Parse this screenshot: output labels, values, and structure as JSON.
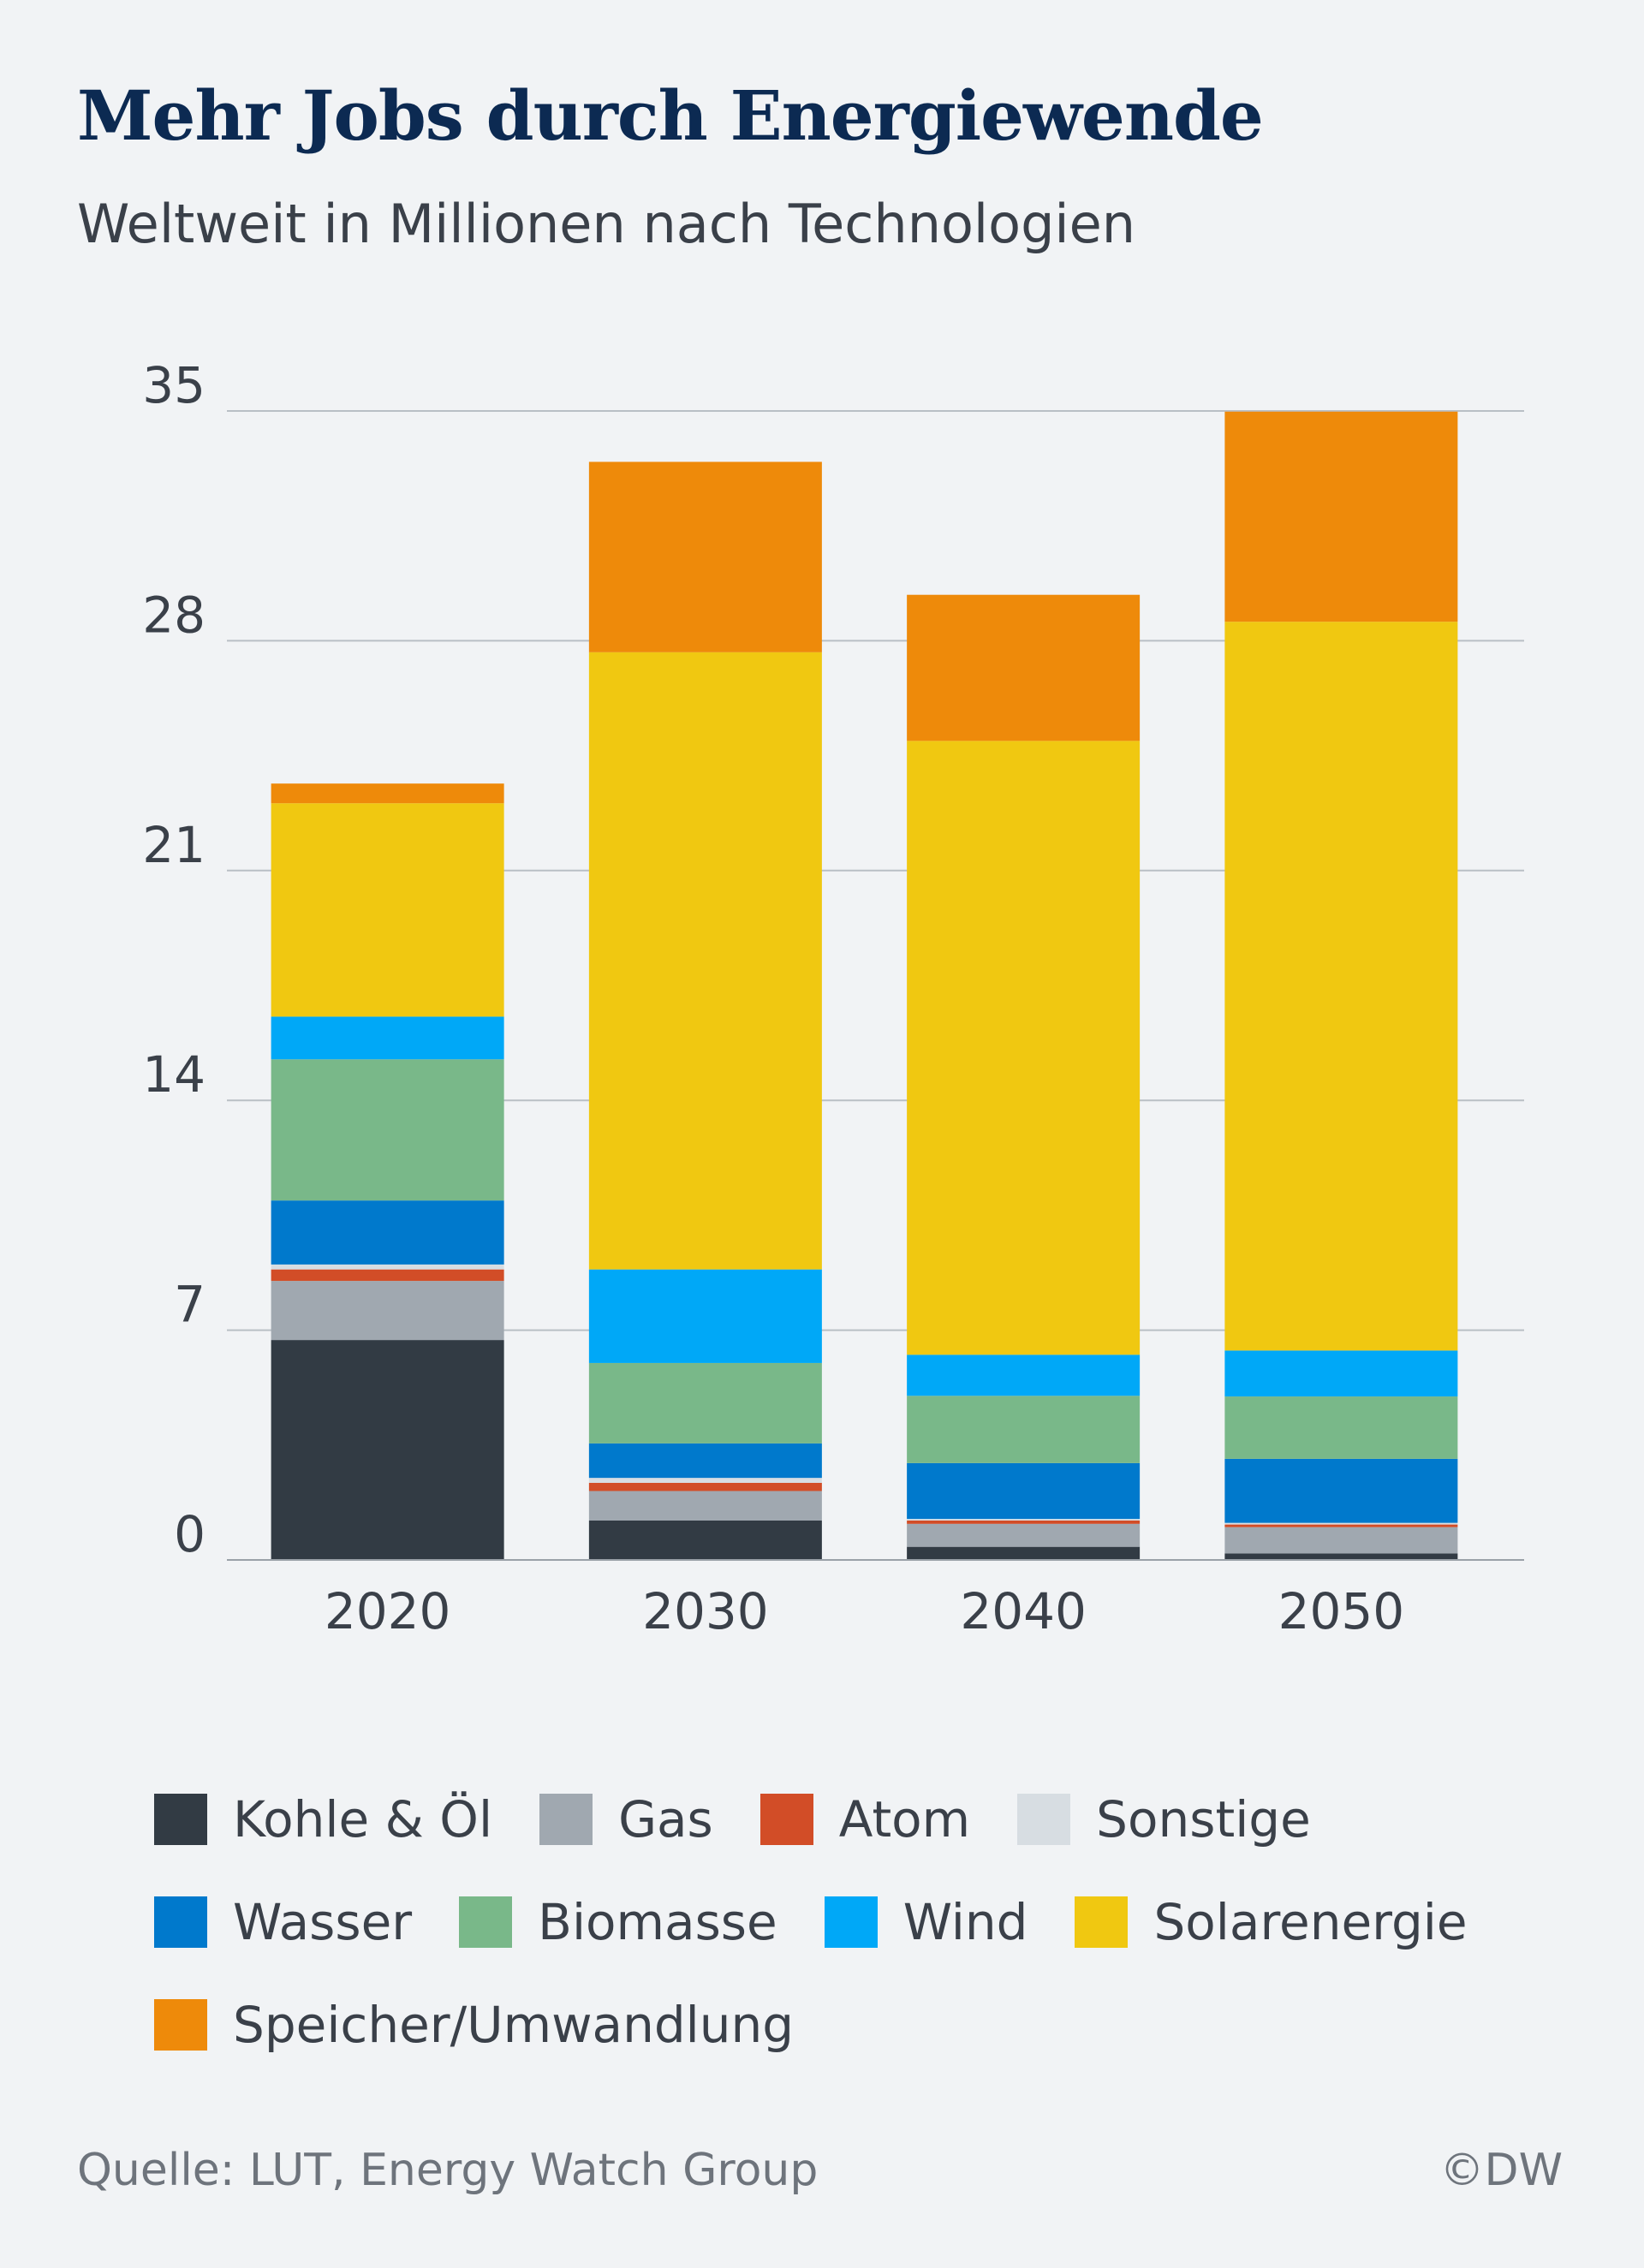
{
  "title": "Mehr Jobs durch Energiewende",
  "subtitle": "Weltweit in Millionen nach Technologien",
  "source": "Quelle: LUT, Energy Watch Group",
  "copyright": "©DW",
  "colors": {
    "Kohle & Öl": "#323b44",
    "Gas": "#a0a8b0",
    "Atom": "#d24d27",
    "Sonstige": "#d7dde2",
    "Wasser": "#0079cc",
    "Biomasse": "#79b889",
    "Wind": "#00a8f7",
    "Solarenergie": "#f0c811",
    "Speicher/Umwandlung": "#ee8a0a",
    "grid": "#b9bfc5",
    "text": "#3a4049",
    "title": "#0c2a52"
  },
  "legend_rows": [
    [
      "Kohle & Öl",
      "Gas",
      "Atom",
      "Sonstige"
    ],
    [
      "Wasser",
      "Biomasse",
      "Wind",
      "Solarenergie"
    ],
    [
      "Speicher/Umwandlung"
    ]
  ],
  "chart_data": {
    "type": "bar",
    "stacked": true,
    "title": "Mehr Jobs durch Energiewende",
    "subtitle": "Weltweit in Millionen nach Technologien",
    "xlabel": "",
    "ylabel": "",
    "ylim": [
      0,
      35
    ],
    "yticks": [
      0,
      7,
      14,
      21,
      28,
      35
    ],
    "grid": true,
    "legend_position": "bottom",
    "categories": [
      "2020",
      "2030",
      "2040",
      "2050"
    ],
    "series": [
      {
        "name": "Kohle & Öl",
        "values": [
          6.7,
          1.2,
          0.4,
          0.2
        ]
      },
      {
        "name": "Gas",
        "values": [
          1.8,
          0.9,
          0.7,
          0.8
        ]
      },
      {
        "name": "Atom",
        "values": [
          0.35,
          0.25,
          0.1,
          0.08
        ]
      },
      {
        "name": "Sonstige",
        "values": [
          0.15,
          0.15,
          0.05,
          0.05
        ]
      },
      {
        "name": "Wasser",
        "values": [
          1.95,
          1.05,
          1.7,
          1.95
        ]
      },
      {
        "name": "Biomasse",
        "values": [
          4.3,
          2.45,
          2.05,
          1.9
        ]
      },
      {
        "name": "Wind",
        "values": [
          1.3,
          2.85,
          1.25,
          1.4
        ]
      },
      {
        "name": "Solarenergie",
        "values": [
          6.5,
          18.8,
          18.7,
          22.2
        ]
      },
      {
        "name": "Speicher/Umwandlung",
        "values": [
          0.6,
          5.8,
          4.45,
          6.4
        ]
      }
    ]
  }
}
